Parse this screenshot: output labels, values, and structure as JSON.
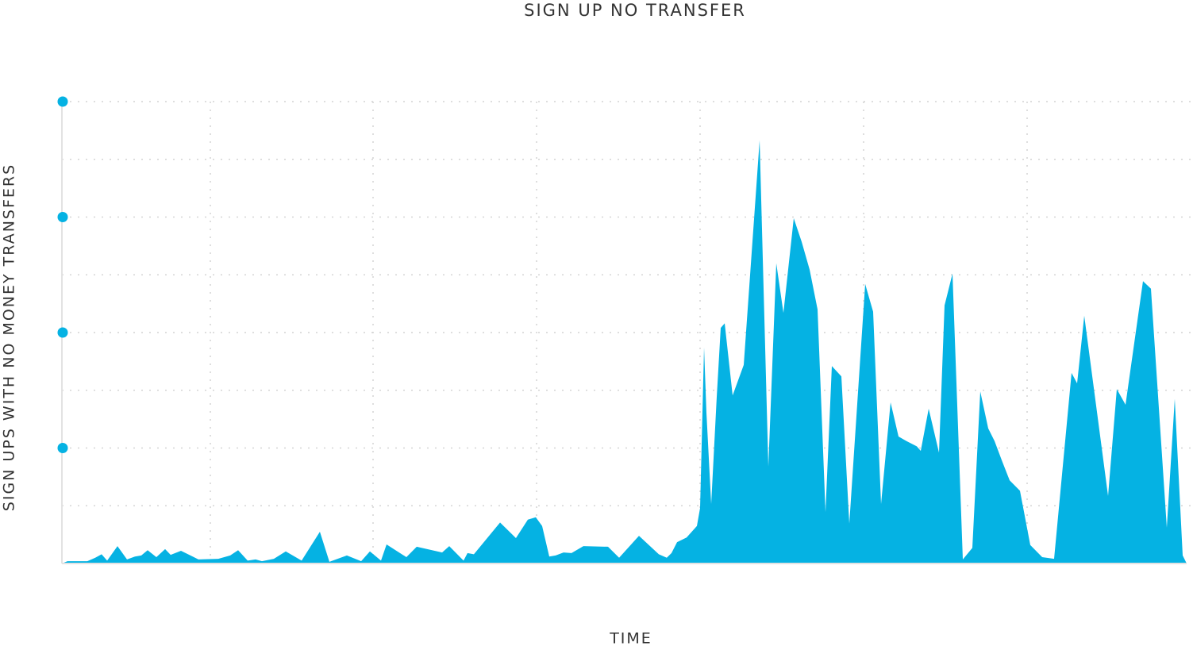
{
  "chart_data": {
    "type": "area",
    "title": "SIGN UP NO TRANSFER",
    "x_label": "TIME",
    "y_label": "SIGN UPS WITH NO MONEY TRANSFERS",
    "color": "#05b2e3",
    "xlim": [
      0,
      1417
    ],
    "ylim": [
      0,
      8
    ],
    "yticks": [
      2,
      4,
      6,
      8
    ],
    "ygrid": [
      1,
      2,
      3,
      4,
      5,
      6,
      7,
      8
    ],
    "xgrid": [
      187,
      392,
      598,
      804,
      1010,
      1216
    ],
    "x": [
      0,
      7,
      17,
      32,
      42,
      50,
      57,
      70,
      82,
      92,
      100,
      108,
      119,
      130,
      137,
      150,
      162,
      172,
      197,
      212,
      222,
      234,
      244,
      252,
      267,
      282,
      302,
      325,
      337,
      359,
      377,
      388,
      402,
      409,
      434,
      447,
      479,
      488,
      506,
      511,
      519,
      552,
      572,
      587,
      597,
      605,
      614,
      622,
      632,
      642,
      657,
      688,
      702,
      727,
      752,
      762,
      768,
      775,
      787,
      800,
      804,
      809,
      812,
      818,
      825,
      830,
      835,
      845,
      859,
      879,
      890,
      900,
      909,
      922,
      932,
      942,
      952,
      962,
      970,
      982,
      992,
      1012,
      1022,
      1032,
      1044,
      1054,
      1064,
      1077,
      1082,
      1092,
      1105,
      1112,
      1122,
      1135,
      1147,
      1157,
      1167,
      1175,
      1184,
      1194,
      1207,
      1220,
      1235,
      1250,
      1272,
      1279,
      1288,
      1318,
      1329,
      1340,
      1362,
      1372,
      1392,
      1402,
      1412,
      1417
    ],
    "values": [
      0,
      0.04,
      0.04,
      0.04,
      0.1,
      0.16,
      0.05,
      0.3,
      0.07,
      0.12,
      0.14,
      0.23,
      0.11,
      0.25,
      0.15,
      0.22,
      0.14,
      0.07,
      0.08,
      0.14,
      0.23,
      0.05,
      0.07,
      0.04,
      0.08,
      0.21,
      0.05,
      0.55,
      0.03,
      0.14,
      0.04,
      0.21,
      0.05,
      0.33,
      0.11,
      0.29,
      0.19,
      0.3,
      0.05,
      0.18,
      0.16,
      0.71,
      0.44,
      0.76,
      0.8,
      0.65,
      0.12,
      0.14,
      0.19,
      0.18,
      0.3,
      0.29,
      0.1,
      0.48,
      0.16,
      0.1,
      0.18,
      0.37,
      0.45,
      0.65,
      0.96,
      3.74,
      2.61,
      1.03,
      2.89,
      4.08,
      4.16,
      2.91,
      3.44,
      7.33,
      1.68,
      5.2,
      4.34,
      5.98,
      5.57,
      5.09,
      4.4,
      0.89,
      3.42,
      3.24,
      0.69,
      4.84,
      4.36,
      1.03,
      2.79,
      2.2,
      2.12,
      2.03,
      1.95,
      2.68,
      1.92,
      4.47,
      5.02,
      0.07,
      0.27,
      2.98,
      2.34,
      2.12,
      1.79,
      1.44,
      1.26,
      0.32,
      0.11,
      0.08,
      3.3,
      3.12,
      4.29,
      1.17,
      3.02,
      2.75,
      4.89,
      4.76,
      0.62,
      2.85,
      0.14,
      0
    ]
  }
}
